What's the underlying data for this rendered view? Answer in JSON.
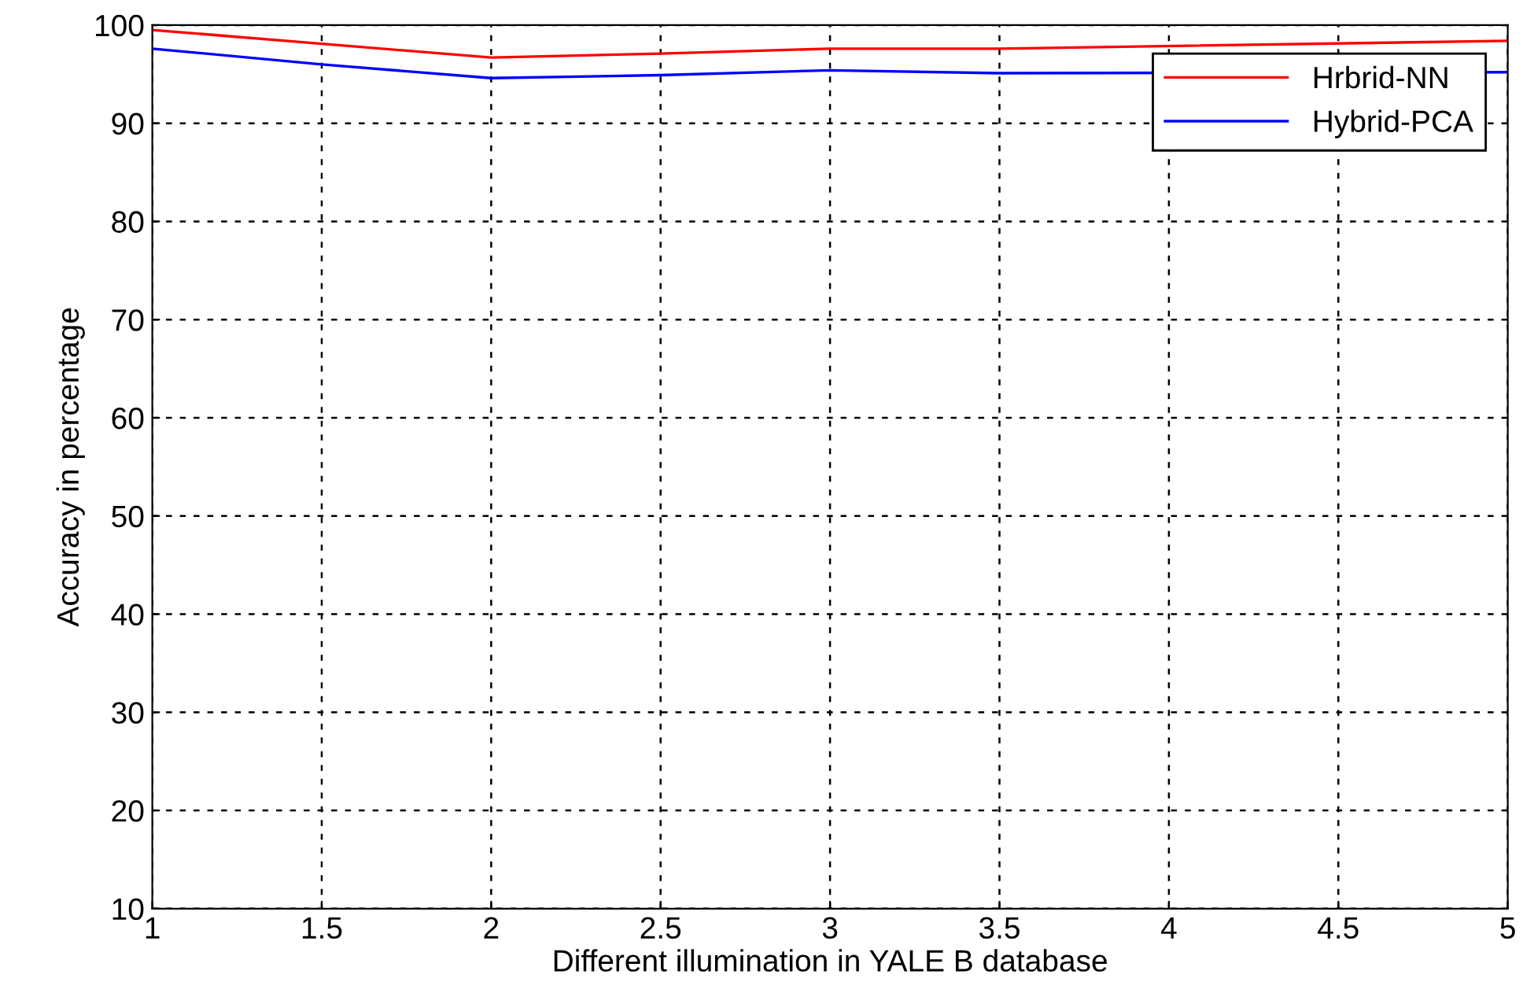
{
  "chart_data": {
    "type": "line",
    "xlabel": "Different illumination in YALE B database",
    "ylabel": "Accuracy in percentage",
    "x": [
      1,
      1.5,
      2,
      2.5,
      3,
      3.5,
      5
    ],
    "series": [
      {
        "name": "Hrbrid-NN",
        "color": "#ff0000",
        "values": [
          99.5,
          98.1,
          96.7,
          97.1,
          97.6,
          97.6,
          98.4
        ]
      },
      {
        "name": "Hybrid-PCA",
        "color": "#0000ff",
        "values": [
          97.6,
          96.0,
          94.6,
          94.9,
          95.4,
          95.1,
          95.2
        ]
      }
    ],
    "xlim": [
      1,
      5
    ],
    "xticks": [
      1,
      1.5,
      2,
      2.5,
      3,
      3.5,
      4,
      4.5,
      5
    ],
    "ylim": [
      10,
      100
    ],
    "yticks": [
      10,
      20,
      30,
      40,
      50,
      60,
      70,
      80,
      90,
      100
    ],
    "grid": true,
    "legend": "top right",
    "marker": "none",
    "line_style": "solid"
  }
}
